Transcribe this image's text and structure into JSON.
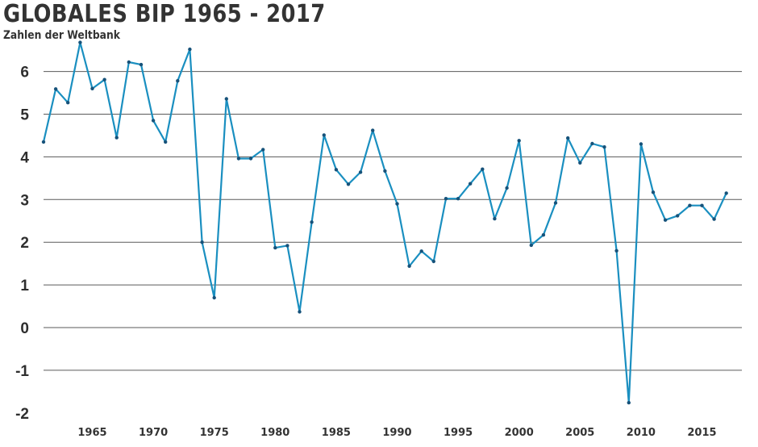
{
  "chart_data": {
    "type": "line",
    "title": "GLOBALES BIP 1965 - 2017",
    "subtitle": "Zahlen der Weltbank",
    "xlabel": "",
    "ylabel": "",
    "xlim": [
      1961,
      2018
    ],
    "ylim": [
      -2,
      7
    ],
    "grid": true,
    "color": "#1a8fc0",
    "y_ticks": [
      6,
      5,
      4,
      3,
      2,
      1,
      0,
      -1,
      -2
    ],
    "y_tick_labels": [
      "6",
      "5",
      "4",
      "3",
      "2",
      "1",
      "0",
      "-1",
      "-2"
    ],
    "x_ticks": [
      1965,
      1970,
      1975,
      1980,
      1985,
      1990,
      1995,
      2000,
      2005,
      2010,
      2015
    ],
    "x_tick_labels": [
      "1965",
      "1970",
      "1975",
      "1980",
      "1985",
      "1990",
      "1995",
      "2000",
      "2005",
      "2010",
      "2015"
    ],
    "series": [
      {
        "x": [
          1961,
          1962,
          1963,
          1964,
          1965,
          1966,
          1967,
          1968,
          1969,
          1970,
          1971,
          1972,
          1973,
          1974,
          1975,
          1976,
          1977,
          1978,
          1979,
          1980,
          1981,
          1982,
          1983,
          1984,
          1985,
          1986,
          1987,
          1988,
          1989,
          1990,
          1991,
          1992,
          1993,
          1994,
          1995,
          1996,
          1997,
          1998,
          1999,
          2000,
          2001,
          2002,
          2003,
          2004,
          2005,
          2006,
          2007,
          2008,
          2009,
          2010,
          2011,
          2012,
          2013,
          2014,
          2015,
          2016,
          2017
        ],
        "values": [
          4.35,
          5.59,
          5.27,
          6.68,
          5.6,
          5.81,
          4.45,
          6.22,
          6.16,
          4.85,
          4.35,
          5.78,
          6.52,
          2.0,
          0.7,
          5.36,
          3.96,
          3.96,
          4.17,
          1.87,
          1.92,
          0.37,
          2.47,
          4.51,
          3.7,
          3.36,
          3.64,
          4.62,
          3.67,
          2.9,
          1.44,
          1.79,
          1.55,
          3.02,
          3.02,
          3.37,
          3.71,
          2.55,
          3.27,
          4.38,
          1.93,
          2.17,
          2.92,
          4.44,
          3.86,
          4.31,
          4.23,
          1.8,
          -1.76,
          4.3,
          3.17,
          2.52,
          2.62,
          2.86,
          2.86,
          2.54,
          3.15
        ]
      }
    ]
  }
}
